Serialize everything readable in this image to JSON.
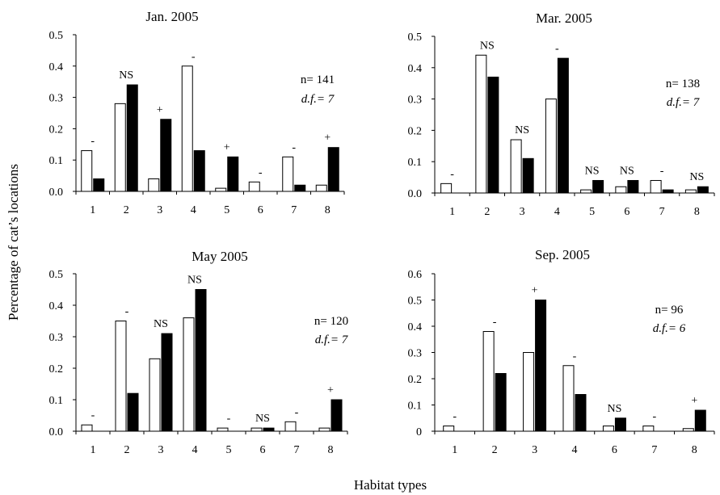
{
  "figure": {
    "ylabel": "Percentage of cat’s locations",
    "xlabel": "Habitat types"
  },
  "chart_data": [
    {
      "type": "bar",
      "title": "Jan. 2005",
      "categories": [
        "1",
        "2",
        "3",
        "4",
        "5",
        "6",
        "7",
        "8"
      ],
      "ylim": [
        0,
        0.5
      ],
      "yticks": [
        "0.0",
        "0.1",
        "0.2",
        "0.3",
        "0.4",
        "0.5"
      ],
      "series": [
        {
          "fill": "#ffffff",
          "values": [
            0.13,
            0.28,
            0.04,
            0.4,
            0.01,
            0.03,
            0.11,
            0.02
          ]
        },
        {
          "fill": "#000000",
          "values": [
            0.04,
            0.34,
            0.23,
            0.13,
            0.11,
            0.0,
            0.02,
            0.14
          ]
        }
      ],
      "marks": [
        "-",
        "NS",
        "+",
        "-",
        "+",
        "-",
        "-",
        "+"
      ],
      "annotation": {
        "n": "n= 141",
        "df": "d.f.= 7"
      }
    },
    {
      "type": "bar",
      "title": "Mar. 2005",
      "categories": [
        "1",
        "2",
        "3",
        "4",
        "5",
        "6",
        "7",
        "8"
      ],
      "ylim": [
        0,
        0.5
      ],
      "yticks": [
        "0.0",
        "0.1",
        "0.2",
        "0.3",
        "0.4",
        "0.5"
      ],
      "series": [
        {
          "fill": "#ffffff",
          "values": [
            0.03,
            0.44,
            0.17,
            0.3,
            0.01,
            0.02,
            0.04,
            0.01
          ]
        },
        {
          "fill": "#000000",
          "values": [
            0.0,
            0.37,
            0.11,
            0.43,
            0.04,
            0.04,
            0.01,
            0.02
          ]
        }
      ],
      "marks": [
        "-",
        "NS",
        "NS",
        "-",
        "NS",
        "NS",
        "-",
        "NS"
      ],
      "annotation": {
        "n": "n= 138",
        "df": "d.f.= 7"
      }
    },
    {
      "type": "bar",
      "title": "May 2005",
      "categories": [
        "1",
        "2",
        "3",
        "4",
        "5",
        "6",
        "7",
        "8"
      ],
      "ylim": [
        0,
        0.5
      ],
      "yticks": [
        "0.0",
        "0.1",
        "0.2",
        "0.3",
        "0.4",
        "0.5"
      ],
      "series": [
        {
          "fill": "#ffffff",
          "values": [
            0.02,
            0.35,
            0.23,
            0.36,
            0.01,
            0.01,
            0.03,
            0.01
          ]
        },
        {
          "fill": "#000000",
          "values": [
            0.0,
            0.12,
            0.31,
            0.45,
            0.0,
            0.01,
            0.0,
            0.1
          ]
        }
      ],
      "marks": [
        "-",
        "-",
        "NS",
        "NS",
        "-",
        "NS",
        "-",
        "+"
      ],
      "annotation": {
        "n": "n= 120",
        "df": "d.f.= 7"
      }
    },
    {
      "type": "bar",
      "title": "Sep. 2005",
      "categories": [
        "1",
        "2",
        "3",
        "4",
        "6",
        "7",
        "8"
      ],
      "ylim": [
        0,
        0.6
      ],
      "yticks": [
        "0",
        "0.1",
        "0.2",
        "0.3",
        "0.4",
        "0.5",
        "0.6"
      ],
      "series": [
        {
          "fill": "#ffffff",
          "values": [
            0.02,
            0.38,
            0.3,
            0.25,
            0.02,
            0.02,
            0.01
          ]
        },
        {
          "fill": "#000000",
          "values": [
            0.0,
            0.22,
            0.5,
            0.14,
            0.05,
            0.0,
            0.08
          ]
        }
      ],
      "marks": [
        "-",
        "-",
        "+",
        "-",
        "NS",
        "-",
        "+"
      ],
      "annotation": {
        "n": "n= 96",
        "df": "d.f.= 6"
      }
    }
  ]
}
